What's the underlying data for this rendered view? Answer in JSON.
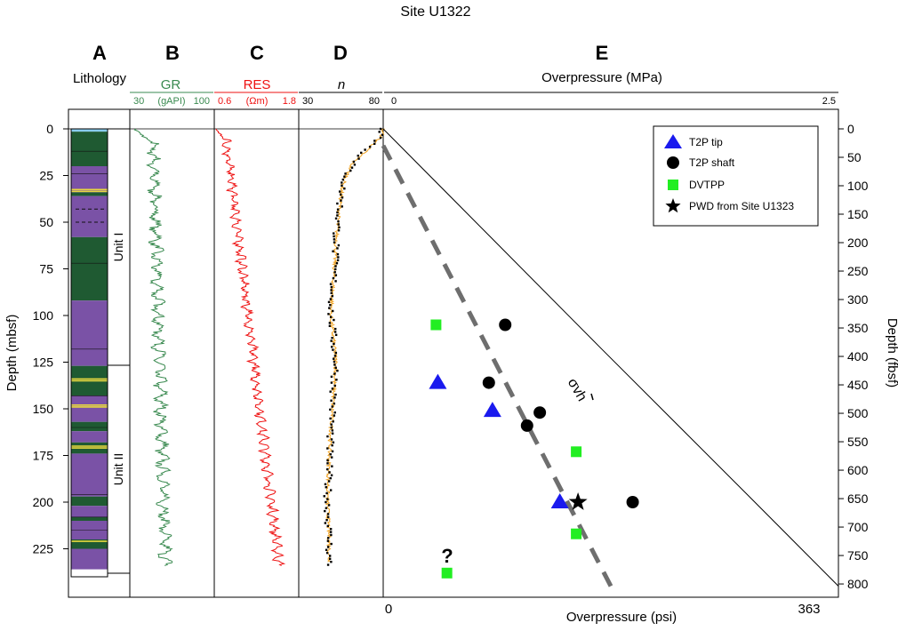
{
  "title": "Site U1322",
  "panel_labels": {
    "a": "A",
    "b": "B",
    "c": "C",
    "d": "D",
    "e": "E"
  },
  "headers": {
    "lithology": "Lithology",
    "gr": {
      "name": "GR",
      "min": "30",
      "unit": "(gAPI)",
      "max": "100"
    },
    "res": {
      "name": "RES",
      "min": "0.6",
      "unit": "(Ωm)",
      "max": "1.8"
    },
    "n": {
      "name": "n",
      "min": "30",
      "max": "80"
    },
    "overpressure": {
      "name": "Overpressure (MPa)",
      "min": "0",
      "max": "2.5"
    }
  },
  "axes": {
    "left_label": "Depth (mbsf)",
    "right_label": "Depth (fbsf)",
    "bottom_label": "Overpressure (psi)",
    "bottom_min": "0",
    "bottom_max": "363",
    "left_ticks": [
      0,
      25,
      50,
      75,
      100,
      125,
      150,
      175,
      200,
      225
    ],
    "right_ticks": [
      0,
      50,
      100,
      150,
      200,
      250,
      300,
      350,
      400,
      450,
      500,
      550,
      600,
      650,
      700,
      750,
      800
    ]
  },
  "units": {
    "unit1": "Unit I",
    "unit2": "Unit II"
  },
  "annotations": {
    "question": "?",
    "sigma_label": "σvh"
  },
  "legend": {
    "t2p_tip": "T2P tip",
    "t2p_shaft": "T2P shaft",
    "dvtpp": "DVTPP",
    "pwd": "PWD from Site U1323"
  },
  "colors": {
    "gr": "#3a8a50",
    "res": "#ee1111",
    "n_orange": "#f2a21e",
    "clay": "#7a52a6",
    "silt": "#1f5a32",
    "seafloor": "#88ccee",
    "sand": "#e8d840",
    "tip": "#1a1aee",
    "dvtpp": "#22ee22",
    "dashed": "#6e6e6e"
  },
  "chart_data": {
    "type": "scatter",
    "y_label": "Depth (mbsf)",
    "y_range": [
      0,
      240
    ],
    "x_label": "Overpressure (MPa)",
    "x_range": [
      0,
      2.5
    ],
    "series": [
      {
        "name": "T2P tip",
        "marker": "triangle",
        "points": [
          [
            0.3,
            136
          ],
          [
            0.6,
            151
          ],
          [
            0.97,
            200
          ]
        ]
      },
      {
        "name": "T2P shaft",
        "marker": "circle",
        "points": [
          [
            0.67,
            105
          ],
          [
            0.58,
            136
          ],
          [
            0.86,
            152
          ],
          [
            0.79,
            159
          ],
          [
            1.37,
            200
          ]
        ]
      },
      {
        "name": "DVTPP",
        "marker": "square",
        "points": [
          [
            0.29,
            105
          ],
          [
            1.06,
            173
          ],
          [
            1.06,
            217
          ],
          [
            0.35,
            238
          ]
        ]
      },
      {
        "name": "PWD from Site U1323",
        "marker": "star",
        "points": [
          [
            1.07,
            200
          ]
        ]
      }
    ],
    "lines": [
      {
        "label": "σvh",
        "style": "solid",
        "points": [
          [
            0,
            0
          ],
          [
            0.6,
            59
          ],
          [
            1.2,
            118
          ],
          [
            2.0,
            196
          ],
          [
            2.5,
            245
          ]
        ]
      },
      {
        "label": "",
        "style": "dashed",
        "points": [
          [
            0,
            9
          ],
          [
            1.25,
            245
          ]
        ]
      }
    ],
    "lithology": {
      "units": [
        {
          "name": "Unit I",
          "top": 0,
          "base": 125
        },
        {
          "name": "Unit II",
          "top": 125,
          "base": 235
        }
      ],
      "layers": [
        {
          "top": 0,
          "base": 1.5,
          "type": "seafloor"
        },
        {
          "top": 1.5,
          "base": 20,
          "type": "silt"
        },
        {
          "top": 20,
          "base": 34,
          "type": "clay"
        },
        {
          "top": 34,
          "base": 36,
          "type": "silt"
        },
        {
          "top": 36,
          "base": 58,
          "type": "clay"
        },
        {
          "top": 58,
          "base": 92,
          "type": "silt"
        },
        {
          "top": 92,
          "base": 127,
          "type": "clay"
        },
        {
          "top": 127,
          "base": 143,
          "type": "silt"
        },
        {
          "top": 143,
          "base": 157,
          "type": "clay"
        },
        {
          "top": 157,
          "base": 162,
          "type": "silt"
        },
        {
          "top": 162,
          "base": 168,
          "type": "clay"
        },
        {
          "top": 168,
          "base": 174,
          "type": "silt"
        },
        {
          "top": 174,
          "base": 197,
          "type": "clay"
        },
        {
          "top": 197,
          "base": 202,
          "type": "silt"
        },
        {
          "top": 202,
          "base": 208,
          "type": "clay"
        },
        {
          "top": 208,
          "base": 210,
          "type": "silt"
        },
        {
          "top": 210,
          "base": 220,
          "type": "clay"
        },
        {
          "top": 220,
          "base": 225,
          "type": "silt"
        },
        {
          "top": 225,
          "base": 236,
          "type": "clay"
        }
      ],
      "sand_lines": [
        32.5,
        33.5,
        134,
        135,
        148,
        149,
        170,
        171,
        221
      ],
      "dashed_lines": [
        43,
        50
      ]
    },
    "gr_log": {
      "range": [
        30,
        100
      ],
      "base": 49,
      "trend": 0.045,
      "amplitude": 6.0
    },
    "res_log": {
      "range": [
        0.6,
        1.8
      ],
      "base": 0.75,
      "trend": 0.0033,
      "amplitude": 0.08
    },
    "n_log": {
      "range": [
        30,
        80
      ],
      "profile": [
        [
          0,
          80
        ],
        [
          4,
          79
        ],
        [
          10,
          72
        ],
        [
          18,
          62
        ],
        [
          30,
          56
        ],
        [
          50,
          53
        ],
        [
          75,
          51
        ],
        [
          100,
          49
        ],
        [
          125,
          52
        ],
        [
          150,
          50
        ],
        [
          175,
          48
        ],
        [
          200,
          47
        ],
        [
          220,
          48
        ],
        [
          235,
          48
        ]
      ]
    }
  }
}
